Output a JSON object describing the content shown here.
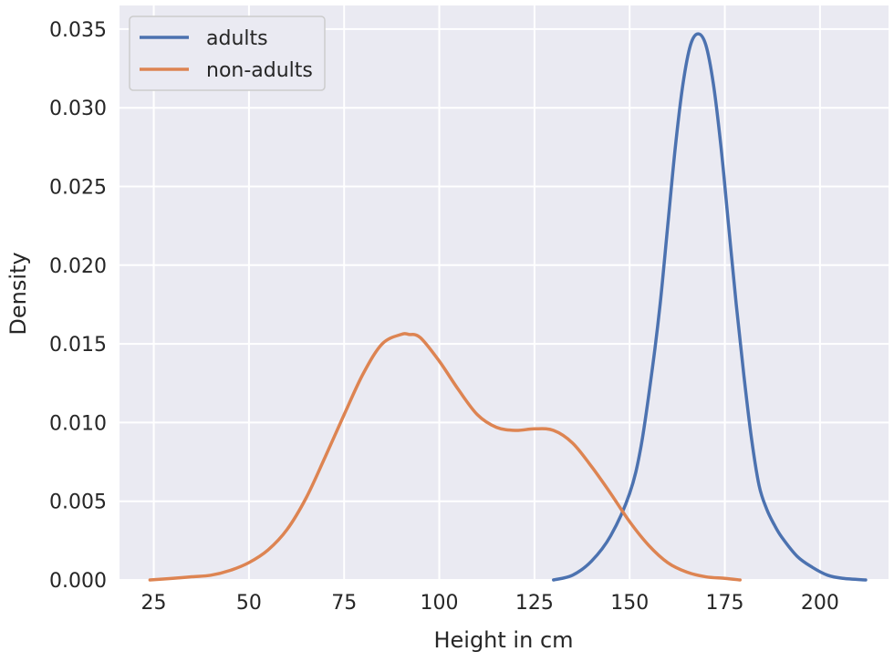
{
  "chart_data": {
    "type": "line",
    "xlabel": "Height in cm",
    "ylabel": "Density",
    "xlim": [
      16,
      218
    ],
    "ylim": [
      0,
      0.0365
    ],
    "xticks": [
      25,
      50,
      75,
      100,
      125,
      150,
      175,
      200
    ],
    "xtick_labels": [
      "25",
      "50",
      "75",
      "100",
      "125",
      "150",
      "175",
      "200"
    ],
    "yticks": [
      0,
      0.005,
      0.01,
      0.015,
      0.02,
      0.025,
      0.03,
      0.035
    ],
    "ytick_labels": [
      "0.000",
      "0.005",
      "0.010",
      "0.015",
      "0.020",
      "0.025",
      "0.030",
      "0.035"
    ],
    "grid": true,
    "legend_position": "top-left",
    "colors": {
      "background": "#eaeaf2",
      "grid": "#ffffff"
    },
    "series": [
      {
        "name": "adults",
        "color": "#4c72b0",
        "x": [
          130,
          135,
          140,
          145,
          150,
          153,
          156,
          158,
          160,
          162,
          164,
          166,
          168,
          170,
          172,
          174,
          176,
          178,
          180,
          182,
          184,
          186,
          188,
          190,
          194,
          198,
          202,
          206,
          212
        ],
        "y": [
          0.0,
          0.0003,
          0.0012,
          0.0028,
          0.0055,
          0.0085,
          0.0135,
          0.0175,
          0.0225,
          0.0275,
          0.0315,
          0.034,
          0.0347,
          0.034,
          0.0315,
          0.0275,
          0.0225,
          0.0175,
          0.013,
          0.009,
          0.006,
          0.0045,
          0.0035,
          0.0027,
          0.0015,
          0.0008,
          0.0003,
          0.0001,
          0.0
        ]
      },
      {
        "name": "non-adults",
        "color": "#dd8452",
        "x": [
          24,
          30,
          35,
          40,
          45,
          50,
          55,
          60,
          65,
          70,
          75,
          80,
          85,
          90,
          92,
          95,
          100,
          105,
          110,
          115,
          120,
          125,
          130,
          135,
          140,
          145,
          150,
          155,
          160,
          165,
          170,
          175,
          179
        ],
        "y": [
          0.0,
          0.0001,
          0.0002,
          0.0003,
          0.0006,
          0.0011,
          0.0019,
          0.0032,
          0.0052,
          0.0078,
          0.0105,
          0.0131,
          0.015,
          0.0156,
          0.0156,
          0.0154,
          0.0139,
          0.0121,
          0.0105,
          0.0097,
          0.0095,
          0.0096,
          0.0095,
          0.0087,
          0.0072,
          0.0055,
          0.0037,
          0.0022,
          0.0011,
          0.0005,
          0.0002,
          0.0001,
          0.0
        ]
      }
    ]
  }
}
